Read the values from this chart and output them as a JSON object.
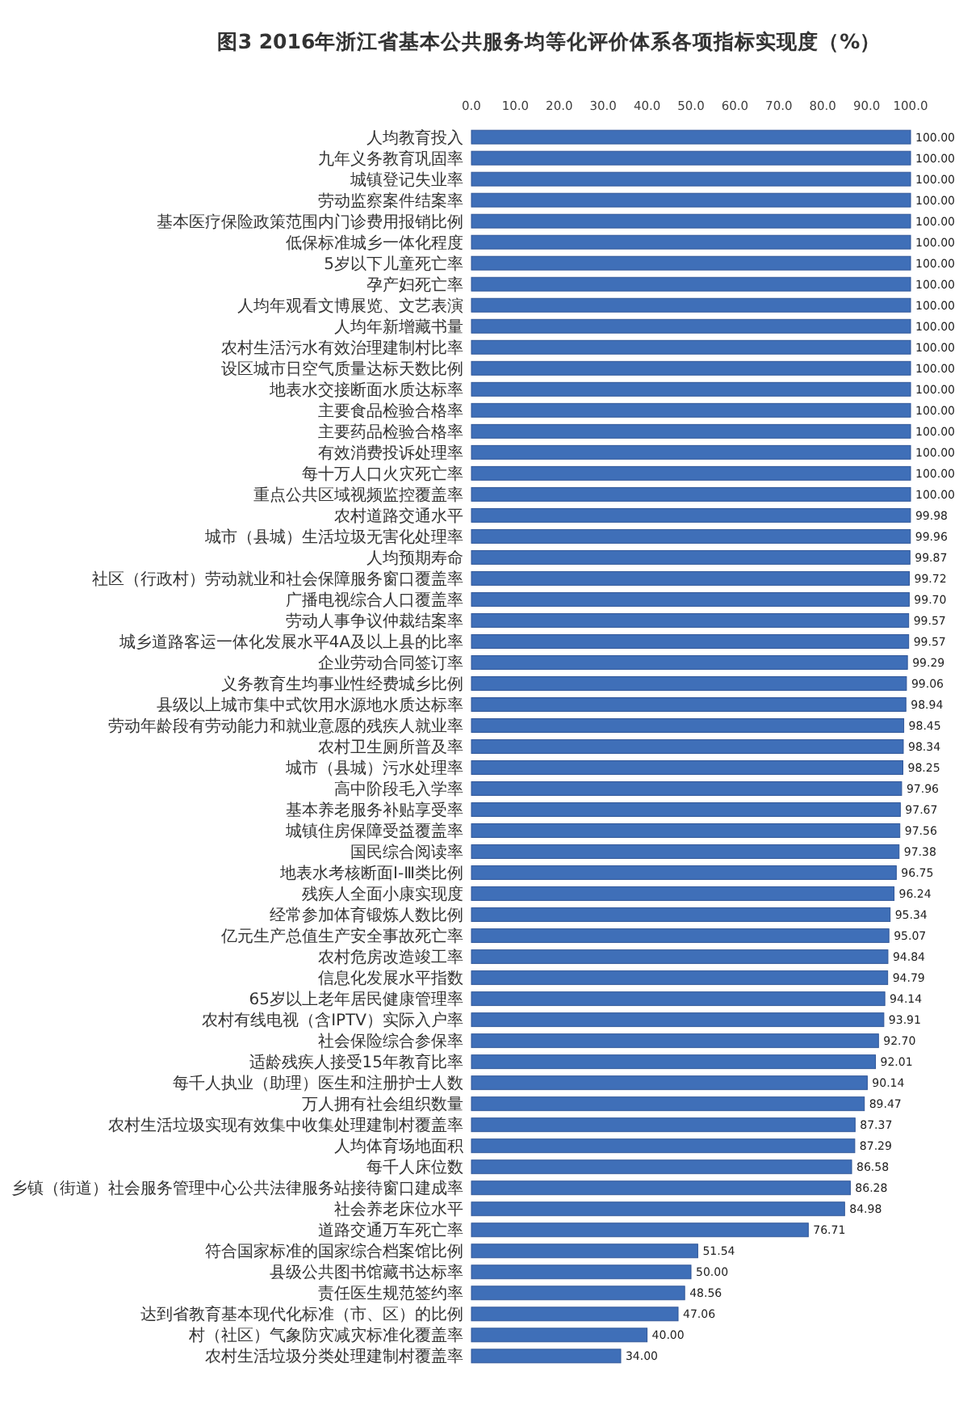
{
  "chart_data": {
    "type": "bar",
    "orientation": "horizontal",
    "title": "图3 2016年浙江省基本公共服务均等化评价体系各项指标实现度（%）",
    "categories": [
      "人均教育投入",
      "九年义务教育巩固率",
      "城镇登记失业率",
      "劳动监察案件结案率",
      "基本医疗保险政策范围内门诊费用报销比例",
      "低保标准城乡一体化程度",
      "5岁以下儿童死亡率",
      "孕产妇死亡率",
      "人均年观看文博展览、文艺表演",
      "人均年新增藏书量",
      "农村生活污水有效治理建制村比率",
      "设区城市日空气质量达标天数比例",
      "地表水交接断面水质达标率",
      "主要食品检验合格率",
      "主要药品检验合格率",
      "有效消费投诉处理率",
      "每十万人口火灾死亡率",
      "重点公共区域视频监控覆盖率",
      "农村道路交通水平",
      "城市（县城）生活垃圾无害化处理率",
      "人均预期寿命",
      "社区（行政村）劳动就业和社会保障服务窗口覆盖率",
      "广播电视综合人口覆盖率",
      "劳动人事争议仲裁结案率",
      "城乡道路客运一体化发展水平4A及以上县的比率",
      "企业劳动合同签订率",
      "义务教育生均事业性经费城乡比例",
      "县级以上城市集中式饮用水源地水质达标率",
      "劳动年龄段有劳动能力和就业意愿的残疾人就业率",
      "农村卫生厕所普及率",
      "城市（县城）污水处理率",
      "高中阶段毛入学率",
      "基本养老服务补贴享受率",
      "城镇住房保障受益覆盖率",
      "国民综合阅读率",
      "地表水考核断面Ⅰ-Ⅲ类比例",
      "残疾人全面小康实现度",
      "经常参加体育锻炼人数比例",
      "亿元生产总值生产安全事故死亡率",
      "农村危房改造竣工率",
      "信息化发展水平指数",
      "65岁以上老年居民健康管理率",
      "农村有线电视（含IPTV）实际入户率",
      "社会保险综合参保率",
      "适龄残疾人接受15年教育比率",
      "每千人执业（助理）医生和注册护士人数",
      "万人拥有社会组织数量",
      "农村生活垃圾实现有效集中收集处理建制村覆盖率",
      "人均体育场地面积",
      "每千人床位数",
      "乡镇（街道）社会服务管理中心公共法律服务站接待窗口建成率",
      "社会养老床位水平",
      "道路交通万车死亡率",
      "符合国家标准的国家综合档案馆比例",
      "县级公共图书馆藏书达标率",
      "责任医生规范签约率",
      "达到省教育基本现代化标准（市、区）的比例",
      "村（社区）气象防灾减灾标准化覆盖率",
      "农村生活垃圾分类处理建制村覆盖率"
    ],
    "values": [
      100,
      100,
      100,
      100,
      100,
      100,
      100,
      100,
      100,
      100,
      100,
      100,
      100,
      100,
      100,
      100,
      100,
      100,
      99.98,
      99.96,
      99.87,
      99.72,
      99.7,
      99.57,
      99.57,
      99.29,
      99.06,
      98.94,
      98.45,
      98.34,
      98.25,
      97.96,
      97.67,
      97.56,
      97.38,
      96.75,
      96.24,
      95.34,
      95.07,
      94.84,
      94.79,
      94.14,
      93.91,
      92.7,
      92.01,
      90.14,
      89.47,
      87.37,
      87.29,
      86.58,
      86.28,
      84.98,
      76.71,
      51.54,
      50.0,
      48.56,
      47.06,
      40.0,
      34.0
    ],
    "value_labels": [
      "100.00",
      "100.00",
      "100.00",
      "100.00",
      "100.00",
      "100.00",
      "100.00",
      "100.00",
      "100.00",
      "100.00",
      "100.00",
      "100.00",
      "100.00",
      "100.00",
      "100.00",
      "100.00",
      "100.00",
      "100.00",
      "99.98",
      "99.96",
      "99.87",
      "99.72",
      "99.70",
      "99.57",
      "99.57",
      "99.29",
      "99.06",
      "98.94",
      "98.45",
      "98.34",
      "98.25",
      "97.96",
      "97.67",
      "97.56",
      "97.38",
      "96.75",
      "96.24",
      "95.34",
      "95.07",
      "94.84",
      "94.79",
      "94.14",
      "93.91",
      "92.70",
      "92.01",
      "90.14",
      "89.47",
      "87.37",
      "87.29",
      "86.58",
      "86.28",
      "84.98",
      "76.71",
      "51.54",
      "50.00",
      "48.56",
      "47.06",
      "40.00",
      "34.00"
    ],
    "color": "#3f6fb8",
    "xlim": [
      0,
      100
    ],
    "xticks": [
      {
        "value": 0,
        "label": "0.0"
      },
      {
        "value": 10,
        "label": "10.0"
      },
      {
        "value": 20,
        "label": "20.0"
      },
      {
        "value": 30,
        "label": "30.0"
      },
      {
        "value": 40,
        "label": "40.0"
      },
      {
        "value": 50,
        "label": "50.0"
      },
      {
        "value": 60,
        "label": "60.0"
      },
      {
        "value": 70,
        "label": "70.0"
      },
      {
        "value": 80,
        "label": "80.0"
      },
      {
        "value": 90,
        "label": "90.0"
      },
      {
        "value": 100,
        "label": "100.0"
      }
    ],
    "grid": false
  }
}
